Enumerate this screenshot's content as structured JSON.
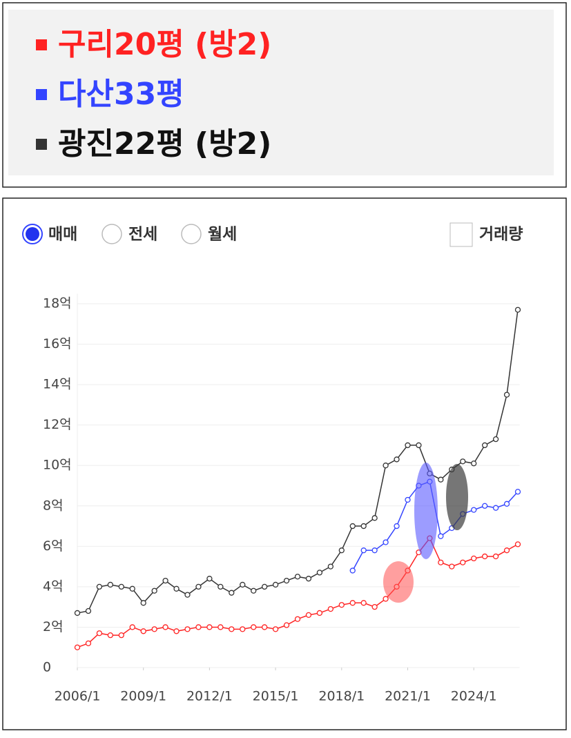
{
  "chart_data": {
    "type": "line",
    "controls": {
      "options": [
        "매매",
        "전세",
        "월세"
      ],
      "checkbox": "거래량"
    },
    "x": [
      "2006/1",
      "2006/7",
      "2007/1",
      "2007/7",
      "2008/1",
      "2008/7",
      "2009/1",
      "2009/7",
      "2010/1",
      "2010/7",
      "2011/1",
      "2011/7",
      "2012/1",
      "2012/7",
      "2013/1",
      "2013/7",
      "2014/1",
      "2014/7",
      "2015/1",
      "2015/7",
      "2016/1",
      "2016/7",
      "2017/1",
      "2017/7",
      "2018/1",
      "2018/7",
      "2019/1",
      "2019/7",
      "2020/1",
      "2020/7",
      "2021/1",
      "2021/7",
      "2022/1",
      "2022/7",
      "2023/1",
      "2023/7",
      "2024/1",
      "2024/7",
      "2025/1",
      "2025/7",
      "2026/1"
    ],
    "xlim": [
      "2006/1",
      "2026/2"
    ],
    "xticks": [
      "2006/1",
      "2009/1",
      "2012/1",
      "2015/1",
      "2018/1",
      "2021/1",
      "2024/1"
    ],
    "ylim": [
      0,
      18.5
    ],
    "yticks": [
      0,
      {
        "value": 2,
        "label": "2억"
      },
      {
        "value": 4,
        "label": "4억"
      },
      {
        "value": 6,
        "label": "6억"
      },
      {
        "value": 8,
        "label": "8억"
      },
      {
        "value": 10,
        "label": "10억"
      },
      {
        "value": 12,
        "label": "12억"
      },
      {
        "value": 14,
        "label": "14억"
      },
      {
        "value": 16,
        "label": "16억"
      },
      {
        "value": 18,
        "label": "18억"
      }
    ],
    "grid": true,
    "series": [
      {
        "name": "구리20평 (방2)",
        "color": "#ff2222",
        "values": [
          1.0,
          1.2,
          1.7,
          1.6,
          1.6,
          2.0,
          1.8,
          1.9,
          2.0,
          1.8,
          1.9,
          2.0,
          2.0,
          2.0,
          1.9,
          1.9,
          2.0,
          2.0,
          1.9,
          2.1,
          2.4,
          2.6,
          2.7,
          2.9,
          3.1,
          3.2,
          3.2,
          3.0,
          3.4,
          4.0,
          4.8,
          5.7,
          6.4,
          5.2,
          5.0,
          5.2,
          5.4,
          5.5,
          5.5,
          5.8,
          6.1
        ]
      },
      {
        "name": "다산33평",
        "color": "#3344ff",
        "values": [
          null,
          null,
          null,
          null,
          null,
          null,
          null,
          null,
          null,
          null,
          null,
          null,
          null,
          null,
          null,
          null,
          null,
          null,
          null,
          null,
          null,
          null,
          null,
          null,
          null,
          4.8,
          5.8,
          5.8,
          6.2,
          7.0,
          8.3,
          9.0,
          9.2,
          6.5,
          6.9,
          7.6,
          7.8,
          8.0,
          7.9,
          8.1,
          8.7
        ]
      },
      {
        "name": "광진22평 (방2)",
        "color": "#333333",
        "values": [
          2.7,
          2.8,
          4.0,
          4.1,
          4.0,
          3.9,
          3.2,
          3.8,
          4.3,
          3.9,
          3.6,
          4.0,
          4.4,
          4.0,
          3.7,
          4.1,
          3.8,
          4.0,
          4.1,
          4.3,
          4.5,
          4.4,
          4.7,
          5.0,
          5.8,
          7.0,
          7.0,
          7.4,
          10.0,
          10.3,
          11.0,
          11.0,
          9.6,
          9.3,
          9.8,
          10.2,
          10.1,
          11.0,
          11.3,
          13.5,
          17.7
        ]
      }
    ]
  }
}
